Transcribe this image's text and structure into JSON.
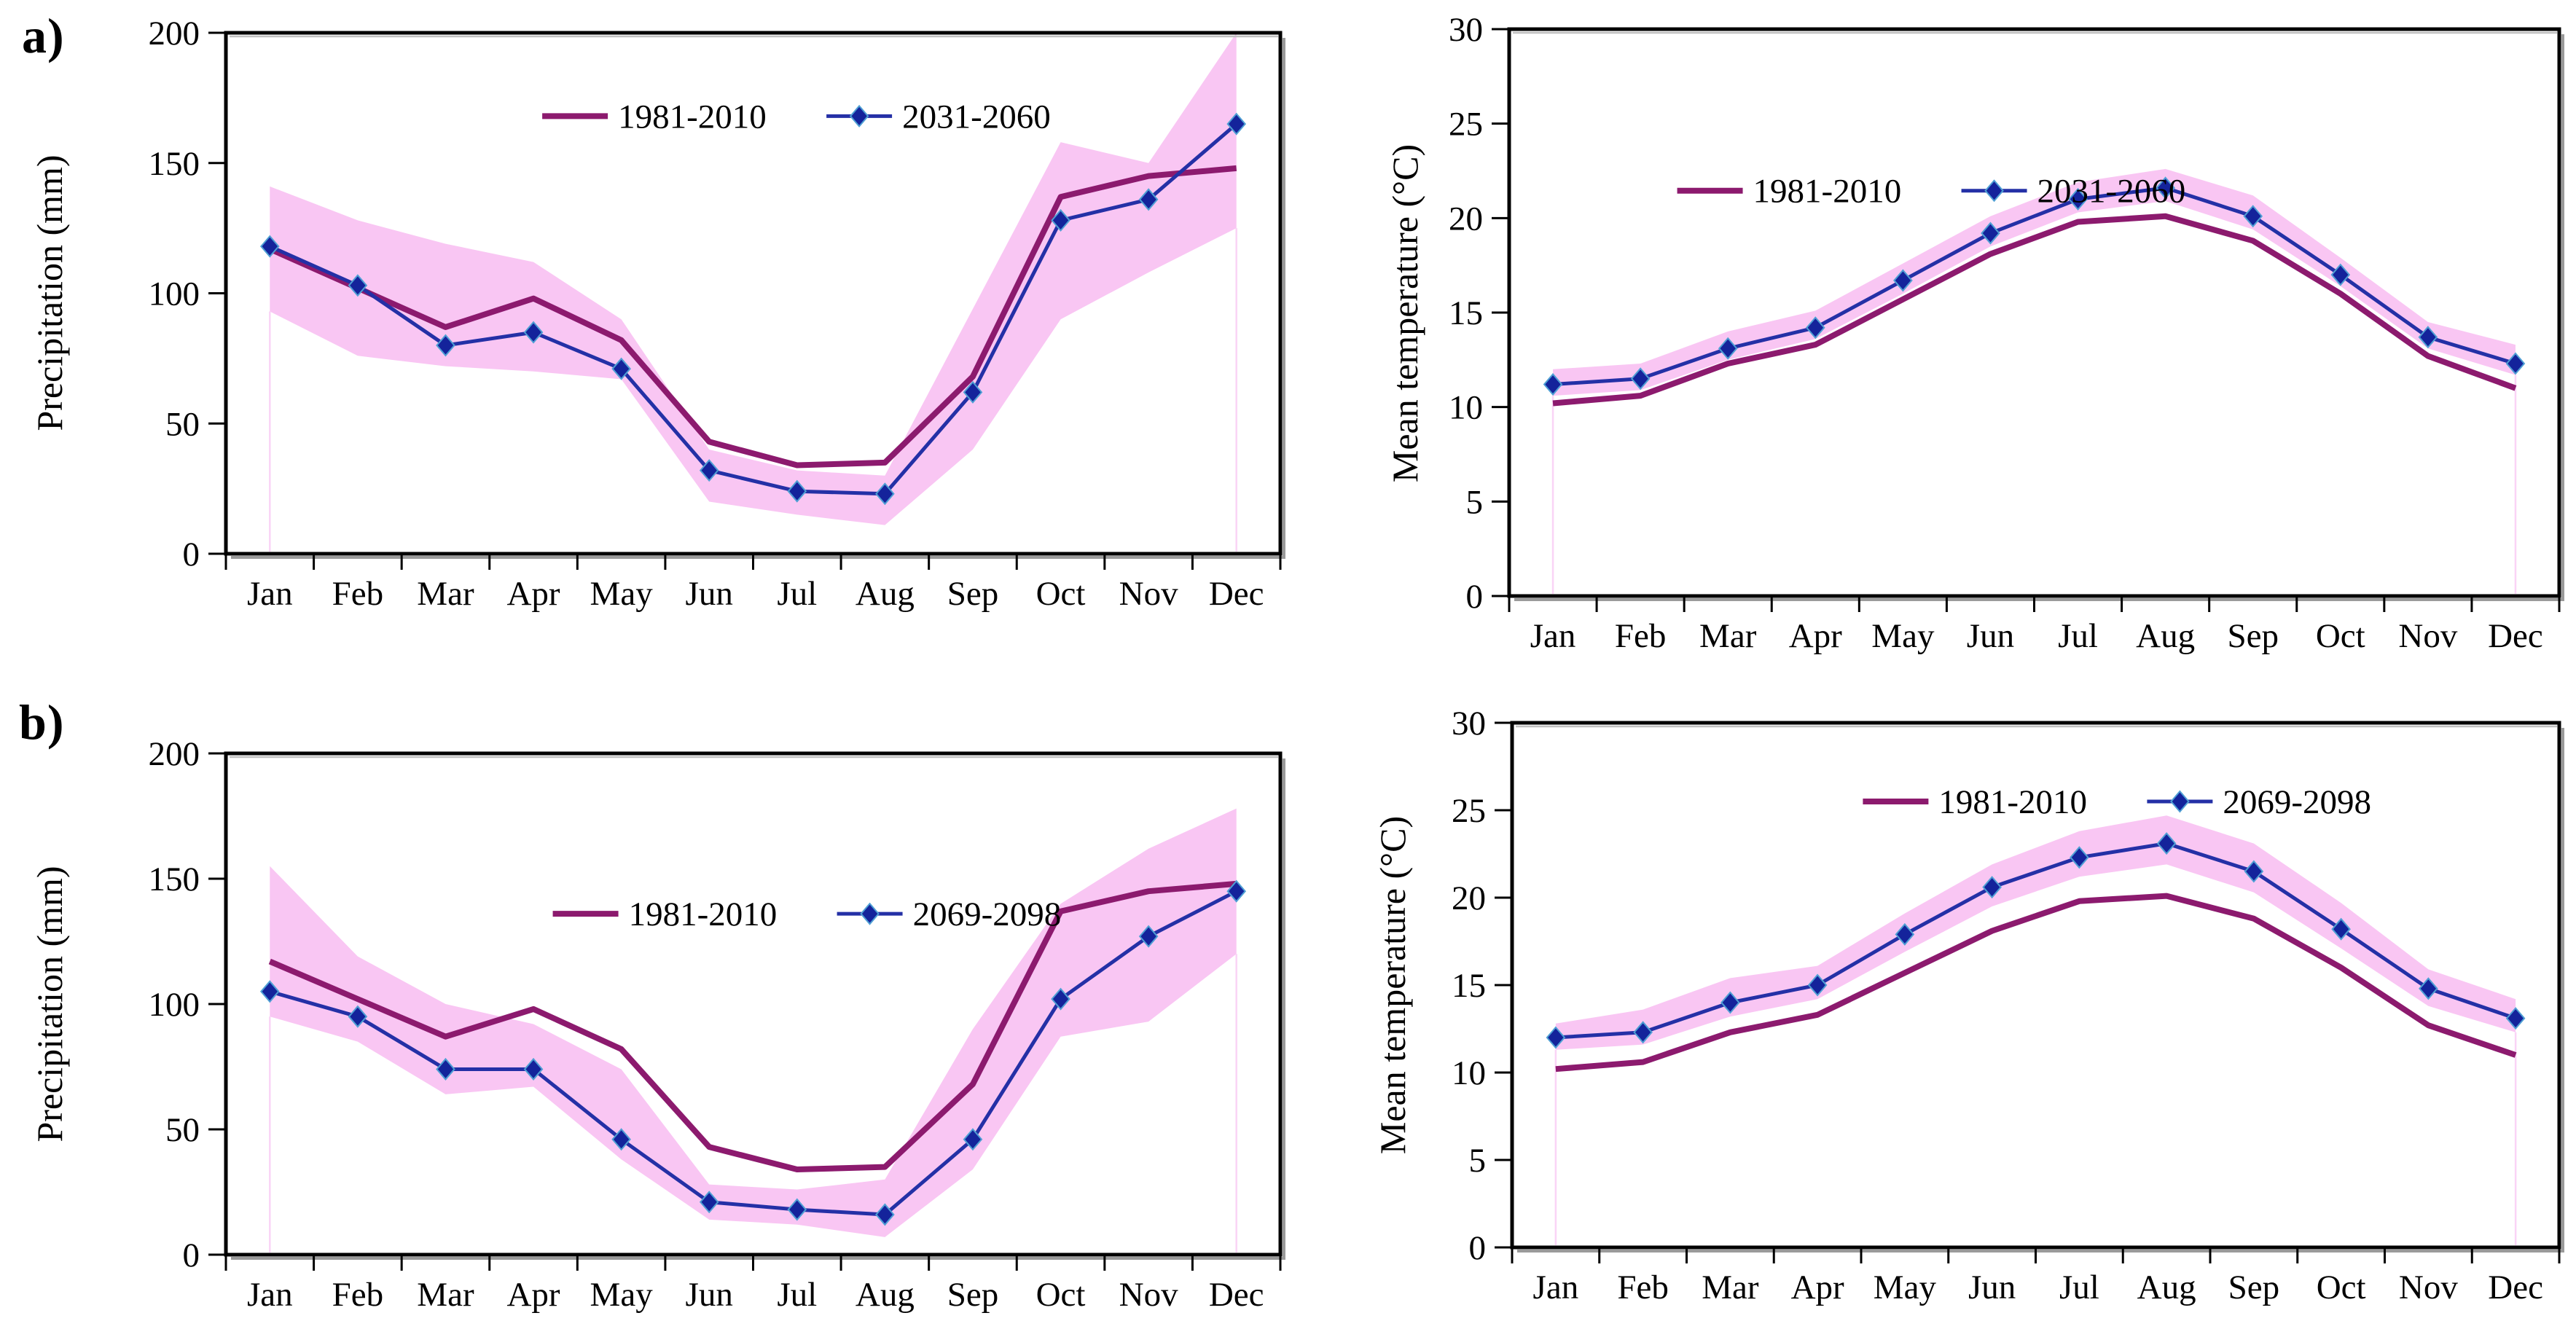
{
  "page": {
    "background": "#ffffff"
  },
  "colors": {
    "baseline_line": "#8C1A6E",
    "future_line": "#2430A6",
    "future_marker": "#14239B",
    "future_marker_edge": "#4E9FD4",
    "band_fill": "#F9C6F3",
    "band_edge": "#FAD4F6",
    "axis": "#000000",
    "frame_shadow": "#9A9A9A",
    "frame_inner_shadow": "#C0C0C0",
    "text": "#000000"
  },
  "panel_labels": {
    "a": "a)",
    "b": "b)"
  },
  "chart_data": [
    {
      "id": "a-precipitation",
      "type": "line",
      "panel_label": "a)",
      "title": "",
      "xlabel": "",
      "ylabel": "Precipitation (mm)",
      "ylim": [
        0,
        200
      ],
      "yticks": [
        0,
        50,
        100,
        150,
        200
      ],
      "grid": false,
      "legend_position": "inside-top-center",
      "categories": [
        "Jan",
        "Feb",
        "Mar",
        "Apr",
        "May",
        "Jun",
        "Jul",
        "Aug",
        "Sep",
        "Oct",
        "Nov",
        "Dec"
      ],
      "series": [
        {
          "name": "1981-2010",
          "role": "baseline",
          "marker": "none",
          "values": [
            117,
            102,
            87,
            98,
            82,
            43,
            34,
            35,
            68,
            137,
            145,
            148
          ]
        },
        {
          "name": "2031-2060",
          "role": "future",
          "marker": "diamond",
          "values": [
            118,
            103,
            80,
            85,
            71,
            32,
            24,
            23,
            62,
            128,
            136,
            165
          ]
        }
      ],
      "band": {
        "label": "projection spread",
        "high": [
          141,
          128,
          119,
          112,
          90,
          40,
          32,
          30,
          94,
          158,
          150,
          200
        ],
        "low": [
          93,
          76,
          72,
          70,
          67,
          20,
          15,
          11,
          40,
          90,
          108,
          125
        ]
      }
    },
    {
      "id": "a-temperature",
      "type": "line",
      "panel_label": "",
      "title": "",
      "xlabel": "",
      "ylabel": "Mean temperature (°C)",
      "ylim": [
        0,
        30
      ],
      "yticks": [
        0,
        5,
        10,
        15,
        20,
        25,
        30
      ],
      "grid": false,
      "legend_position": "inside-top-center",
      "categories": [
        "Jan",
        "Feb",
        "Mar",
        "Apr",
        "May",
        "Jun",
        "Jul",
        "Aug",
        "Sep",
        "Oct",
        "Nov",
        "Dec"
      ],
      "series": [
        {
          "name": "1981-2010",
          "role": "baseline",
          "marker": "none",
          "values": [
            10.2,
            10.6,
            12.3,
            13.3,
            15.7,
            18.1,
            19.8,
            20.1,
            18.8,
            16.0,
            12.7,
            11.0
          ]
        },
        {
          "name": "2031-2060",
          "role": "future",
          "marker": "diamond",
          "values": [
            11.2,
            11.5,
            13.1,
            14.2,
            16.7,
            19.2,
            21.0,
            21.6,
            20.1,
            17.0,
            13.7,
            12.3
          ]
        }
      ],
      "band": {
        "label": "projection spread",
        "high": [
          12.0,
          12.3,
          14.0,
          15.1,
          17.6,
          20.1,
          21.9,
          22.6,
          21.2,
          17.9,
          14.5,
          13.3
        ],
        "low": [
          10.6,
          10.9,
          12.5,
          13.6,
          16.0,
          18.5,
          20.3,
          20.9,
          19.4,
          16.4,
          13.1,
          11.7
        ]
      }
    },
    {
      "id": "b-precipitation",
      "type": "line",
      "panel_label": "b)",
      "title": "",
      "xlabel": "",
      "ylabel": "Precipitation (mm)",
      "ylim": [
        0,
        200
      ],
      "yticks": [
        0,
        50,
        100,
        150,
        200
      ],
      "grid": false,
      "legend_position": "inside-top-center",
      "categories": [
        "Jan",
        "Feb",
        "Mar",
        "Apr",
        "May",
        "Jun",
        "Jul",
        "Aug",
        "Sep",
        "Oct",
        "Nov",
        "Dec"
      ],
      "series": [
        {
          "name": "1981-2010",
          "role": "baseline",
          "marker": "none",
          "values": [
            117,
            102,
            87,
            98,
            82,
            43,
            34,
            35,
            68,
            137,
            145,
            148
          ]
        },
        {
          "name": "2069-2098",
          "role": "future",
          "marker": "diamond",
          "values": [
            105,
            95,
            74,
            74,
            46,
            21,
            18,
            16,
            46,
            102,
            127,
            145
          ]
        }
      ],
      "band": {
        "label": "projection spread",
        "high": [
          155,
          119,
          100,
          92,
          74,
          28,
          26,
          30,
          90,
          140,
          162,
          178
        ],
        "low": [
          95,
          85,
          64,
          67,
          38,
          14,
          12,
          7,
          34,
          87,
          93,
          120
        ]
      }
    },
    {
      "id": "b-temperature",
      "type": "line",
      "panel_label": "",
      "title": "",
      "xlabel": "",
      "ylabel": "Mean temperature (°C)",
      "ylim": [
        0,
        30
      ],
      "yticks": [
        0,
        5,
        10,
        15,
        20,
        25,
        30
      ],
      "grid": false,
      "legend_position": "inside-top-center",
      "categories": [
        "Jan",
        "Feb",
        "Mar",
        "Apr",
        "May",
        "Jun",
        "Jul",
        "Aug",
        "Sep",
        "Oct",
        "Nov",
        "Dec"
      ],
      "series": [
        {
          "name": "1981-2010",
          "role": "baseline",
          "marker": "none",
          "values": [
            10.2,
            10.6,
            12.3,
            13.3,
            15.7,
            18.1,
            19.8,
            20.1,
            18.8,
            16.0,
            12.7,
            11.0
          ]
        },
        {
          "name": "2069-2098",
          "role": "future",
          "marker": "diamond",
          "values": [
            12.0,
            12.3,
            14.0,
            15.0,
            17.9,
            20.6,
            22.3,
            23.1,
            21.5,
            18.2,
            14.8,
            13.1
          ]
        }
      ],
      "band": {
        "label": "projection spread",
        "high": [
          12.8,
          13.6,
          15.4,
          16.1,
          19.1,
          21.9,
          23.8,
          24.7,
          23.1,
          19.7,
          15.9,
          14.2
        ],
        "low": [
          11.3,
          11.6,
          13.2,
          14.2,
          16.9,
          19.5,
          21.2,
          21.9,
          20.3,
          17.1,
          13.8,
          12.3
        ]
      }
    }
  ]
}
